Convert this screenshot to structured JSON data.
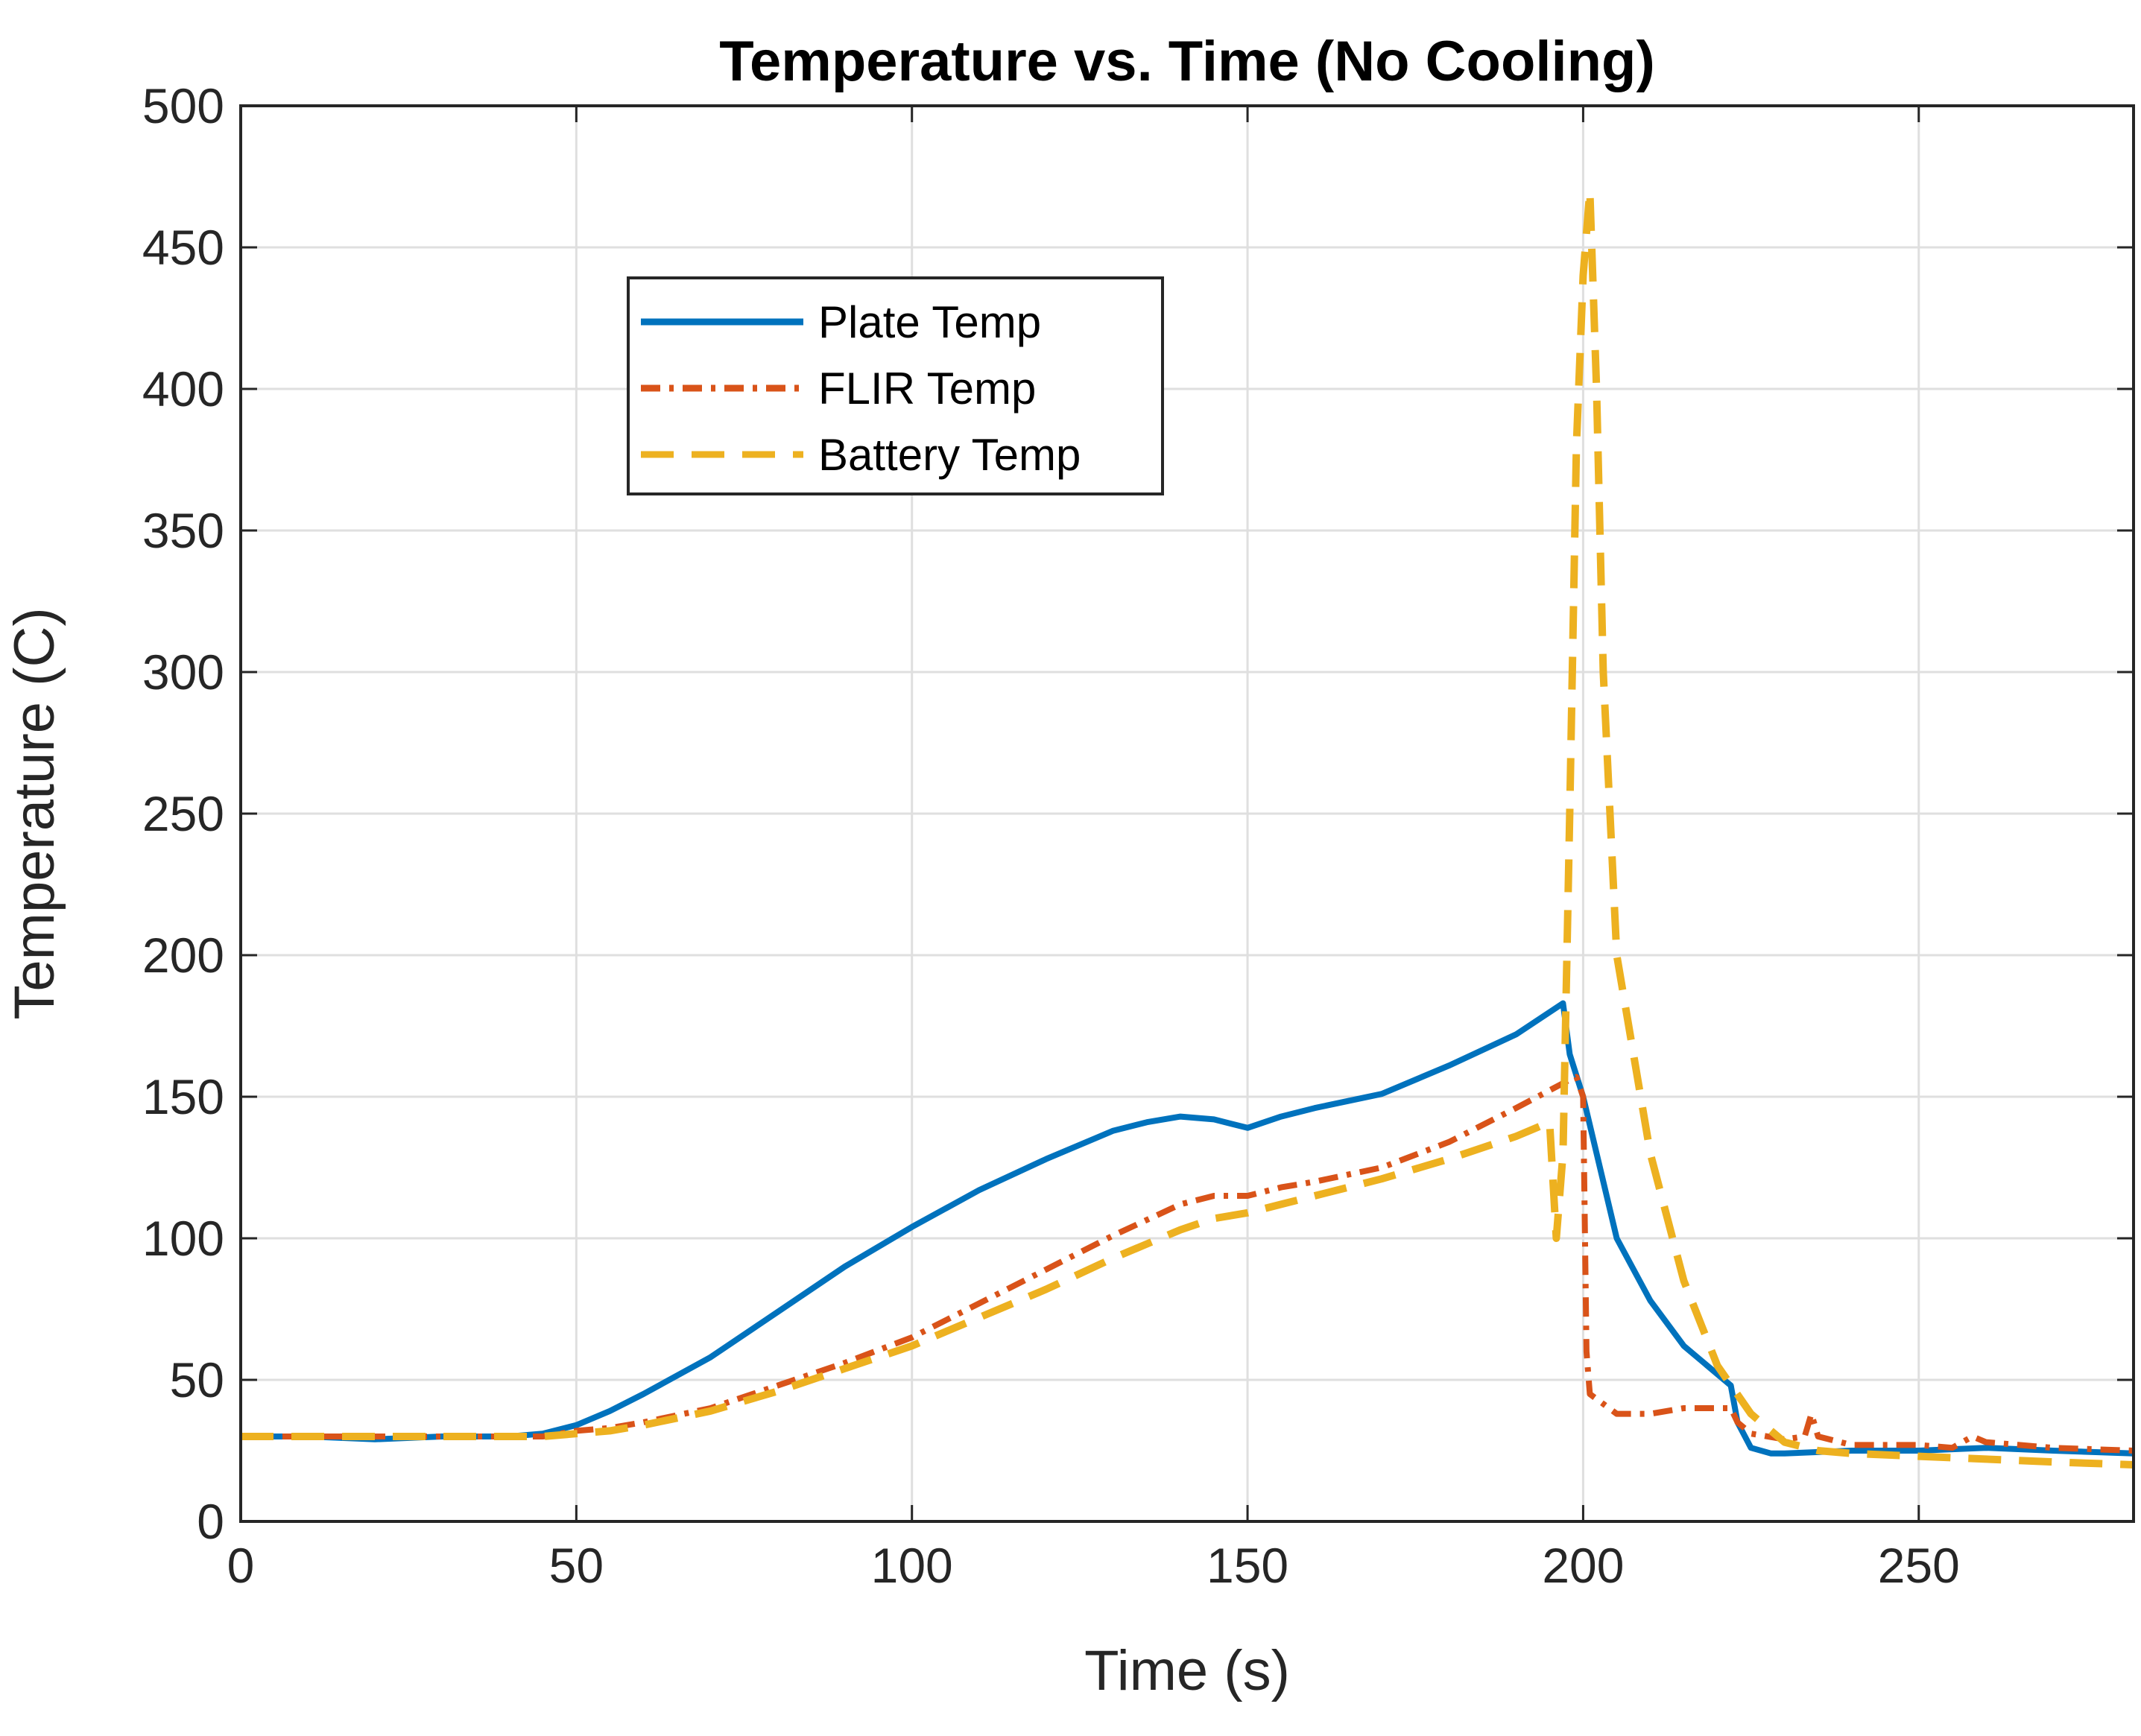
{
  "chart_data": {
    "type": "line",
    "title": "Temperature vs. Time (No Cooling)",
    "xlabel": "Time (s)",
    "ylabel": "Temperature (C)",
    "xlim": [
      0,
      282
    ],
    "ylim": [
      0,
      500
    ],
    "xticks": [
      0,
      50,
      100,
      150,
      200,
      250
    ],
    "yticks": [
      0,
      50,
      100,
      150,
      200,
      250,
      300,
      350,
      400,
      450,
      500
    ],
    "grid": true,
    "legend_position": "upper-left-inside",
    "series": [
      {
        "name": "Plate Temp",
        "color": "#0072BD",
        "style": "solid",
        "x": [
          0,
          10,
          20,
          30,
          40,
          45,
          50,
          55,
          60,
          70,
          80,
          90,
          100,
          110,
          120,
          130,
          135,
          140,
          145,
          150,
          155,
          160,
          170,
          180,
          190,
          197,
          198,
          200,
          205,
          210,
          215,
          220,
          222,
          223,
          225,
          228,
          230,
          240,
          250,
          260,
          270,
          282
        ],
        "y": [
          30,
          30,
          29,
          30,
          30,
          31,
          34,
          39,
          45,
          58,
          74,
          90,
          104,
          117,
          128,
          138,
          141,
          143,
          142,
          139,
          143,
          146,
          151,
          161,
          172,
          183,
          165,
          150,
          100,
          78,
          62,
          52,
          48,
          35,
          26,
          24,
          24,
          25,
          25,
          26,
          25,
          24
        ]
      },
      {
        "name": "FLIR Temp",
        "color": "#D95319",
        "style": "dashdot",
        "x": [
          0,
          10,
          20,
          30,
          40,
          45,
          50,
          55,
          60,
          70,
          80,
          90,
          100,
          110,
          120,
          130,
          140,
          145,
          150,
          155,
          160,
          170,
          180,
          190,
          198,
          199,
          200,
          200.5,
          201,
          205,
          210,
          215,
          220,
          222,
          223,
          225,
          230,
          233,
          234,
          235,
          240,
          250,
          255,
          258,
          260,
          270,
          282
        ],
        "y": [
          30,
          30,
          30,
          30,
          30,
          30,
          32,
          33,
          35,
          40,
          48,
          56,
          65,
          77,
          89,
          101,
          112,
          115,
          115,
          118,
          120,
          125,
          134,
          146,
          156,
          157,
          150,
          60,
          45,
          38,
          38,
          40,
          40,
          40,
          35,
          31,
          29,
          30,
          38,
          30,
          27,
          27,
          26,
          30,
          28,
          26,
          25
        ]
      },
      {
        "name": "Battery Temp",
        "color": "#EDB120",
        "style": "dashed",
        "x": [
          0,
          10,
          20,
          30,
          40,
          45,
          50,
          55,
          60,
          70,
          80,
          90,
          100,
          110,
          120,
          130,
          140,
          145,
          150,
          155,
          160,
          170,
          180,
          190,
          195,
          196,
          197,
          198,
          199,
          200,
          201,
          202,
          203,
          205,
          210,
          215,
          220,
          225,
          230,
          235,
          240,
          250,
          260,
          270,
          282
        ],
        "y": [
          30,
          30,
          30,
          30,
          30,
          30,
          31,
          32,
          34,
          39,
          46,
          54,
          62,
          72,
          82,
          93,
          103,
          107,
          109,
          112,
          115,
          121,
          128,
          136,
          141,
          100,
          130,
          250,
          380,
          440,
          470,
          400,
          300,
          200,
          130,
          85,
          55,
          38,
          28,
          25,
          24,
          23,
          22,
          21,
          20
        ]
      }
    ]
  }
}
